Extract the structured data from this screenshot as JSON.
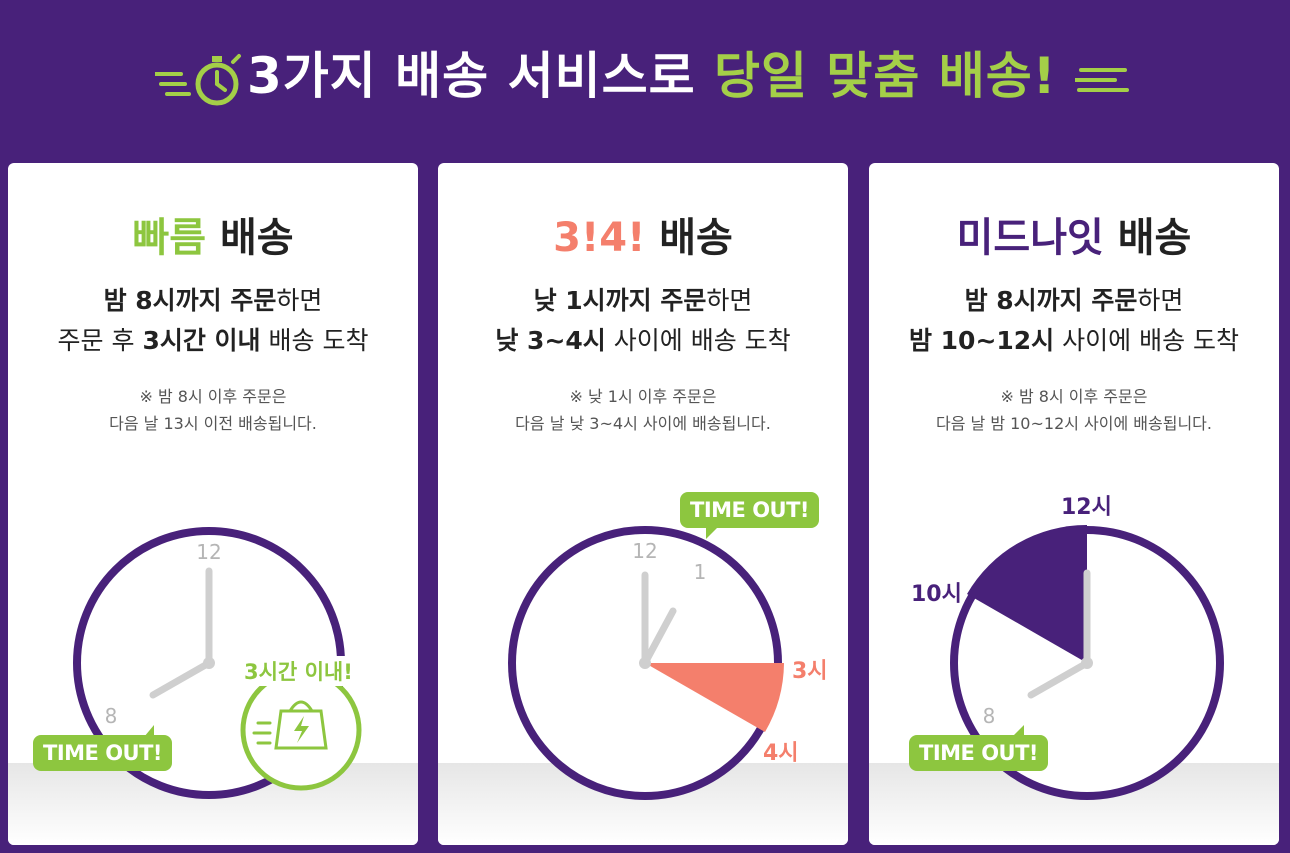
{
  "header": {
    "title_plain": "3가지 배송 서비스로 ",
    "title_accent": "당일 맞춤 배송!"
  },
  "colors": {
    "background": "#48217a",
    "green": "#8dc63f",
    "coral": "#f47f6c",
    "purple": "#48217a"
  },
  "cards": [
    {
      "title_accent": "빠름",
      "title_rest": " 배송",
      "desc1_bold": "밤 8시까지 주문",
      "desc1_rest": "하면",
      "desc2_pre": "주문 후 ",
      "desc2_bold": "3시간 이내",
      "desc2_rest": " 배송 도착",
      "note1": "※ 밤 8시 이후 주문은",
      "note2": "다음 날 13시 이전 배송됩니다.",
      "clock_num_12": "12",
      "clock_num_8": "8",
      "bubble": "TIME OUT!",
      "badge": "3시간 이내!",
      "badge_icon": "shopping-bag-lightning-icon"
    },
    {
      "title_accent": "3!4!",
      "title_rest": " 배송",
      "desc1_bold": "낮 1시까지 주문",
      "desc1_rest": "하면",
      "desc2_bold": "낮 3~4시",
      "desc2_rest": " 사이에 배송 도착",
      "note1": "※ 낮 1시 이후 주문은",
      "note2": "다음 날 낮 3~4시 사이에 배송됩니다.",
      "clock_num_12": "12",
      "clock_num_1": "1",
      "label_3": "3시",
      "label_4": "4시",
      "bubble": "TIME OUT!"
    },
    {
      "title_accent": "미드나잇",
      "title_rest": " 배송",
      "desc1_bold": "밤 8시까지 주문",
      "desc1_rest": "하면",
      "desc2_bold": "밤 10~12시",
      "desc2_rest": " 사이에 배송 도착",
      "note1": "※ 밤 8시 이후 주문은",
      "note2": "다음 날 밤 10~12시 사이에 배송됩니다.",
      "clock_num_8": "8",
      "label_12": "12시",
      "label_10": "10시",
      "bubble": "TIME OUT!"
    }
  ]
}
